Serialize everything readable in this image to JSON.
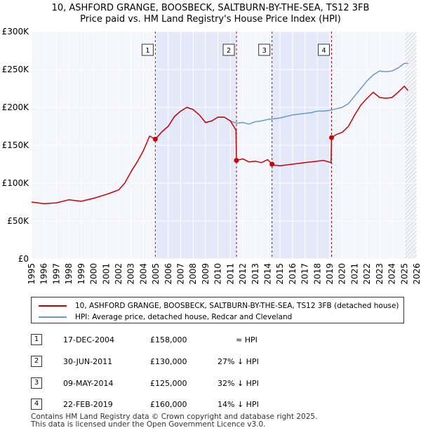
{
  "title_line1": "10, ASHFORD GRANGE, BOOSBECK, SALTBURN-BY-THE-SEA, TS12 3FB",
  "title_line2": "Price paid vs. HM Land Registry's House Price Index (HPI)",
  "chart_data": {
    "type": "line",
    "xlim": [
      1995,
      2026
    ],
    "ylim": [
      0,
      300000
    ],
    "y_ticks": [
      0,
      50000,
      100000,
      150000,
      200000,
      250000,
      300000
    ],
    "y_tick_labels": [
      "£0",
      "£50K",
      "£100K",
      "£150K",
      "£200K",
      "£250K",
      "£300K"
    ],
    "x_ticks": [
      1995,
      1996,
      1997,
      1998,
      1999,
      2000,
      2001,
      2002,
      2003,
      2004,
      2005,
      2006,
      2007,
      2008,
      2009,
      2010,
      2011,
      2012,
      2013,
      2014,
      2015,
      2016,
      2017,
      2018,
      2019,
      2020,
      2021,
      2022,
      2023,
      2024,
      2025,
      2026
    ],
    "grid": true,
    "series": [
      {
        "name": "10, ASHFORD GRANGE, BOOSBECK, SALTBURN-BY-THE-SEA, TS12 3FB (detached house)",
        "color": "#cc0000",
        "x": [
          1995.0,
          1996.0,
          1997.0,
          1998.0,
          1999.0,
          2000.0,
          2001.0,
          2001.5,
          2002.0,
          2002.5,
          2003.0,
          2003.5,
          2004.0,
          2004.5,
          2004.96,
          2005.5,
          2006.0,
          2006.5,
          2007.0,
          2007.5,
          2008.0,
          2008.5,
          2009.0,
          2009.5,
          2010.0,
          2010.5,
          2011.0,
          2011.45,
          2011.49,
          2012.0,
          2012.5,
          2013.0,
          2013.5,
          2014.0,
          2014.35,
          2014.4,
          2015.0,
          2016.0,
          2017.0,
          2018.0,
          2018.5,
          2019.1,
          2019.14,
          2019.5,
          2020.0,
          2020.5,
          2021.0,
          2021.5,
          2022.0,
          2022.5,
          2023.0,
          2023.5,
          2024.0,
          2024.5,
          2025.0,
          2025.3
        ],
        "y": [
          75000,
          73000,
          74000,
          78000,
          76000,
          80000,
          85000,
          88000,
          91000,
          100000,
          115000,
          128000,
          143000,
          162000,
          158000,
          168000,
          175000,
          188000,
          195000,
          200000,
          197000,
          190000,
          180000,
          182000,
          187000,
          187000,
          182000,
          170000,
          130000,
          132000,
          128000,
          129000,
          127000,
          131000,
          125000,
          124000,
          123000,
          125000,
          127000,
          129000,
          130000,
          127000,
          160000,
          164000,
          167000,
          175000,
          190000,
          203000,
          212000,
          220000,
          213000,
          212000,
          213000,
          220000,
          228000,
          222000
        ]
      },
      {
        "name": "HPI: Average price, detached house, Redcar and Cleveland",
        "color": "#6699cc",
        "x": [
          2004.96,
          2005.5,
          2006.0,
          2006.5,
          2007.0,
          2007.5,
          2008.0,
          2008.5,
          2009.0,
          2009.5,
          2010.0,
          2010.5,
          2011.0,
          2011.5,
          2012.0,
          2012.5,
          2013.0,
          2013.5,
          2014.0,
          2014.5,
          2015.0,
          2015.5,
          2016.0,
          2016.5,
          2017.0,
          2017.5,
          2018.0,
          2018.5,
          2019.0,
          2019.5,
          2020.0,
          2020.5,
          2021.0,
          2021.5,
          2022.0,
          2022.5,
          2023.0,
          2023.5,
          2024.0,
          2024.5,
          2025.0,
          2025.3
        ],
        "y": [
          158000,
          168000,
          175000,
          188000,
          195000,
          200000,
          197000,
          190000,
          180000,
          182000,
          187000,
          187000,
          182000,
          179000,
          180000,
          178000,
          181000,
          182000,
          184000,
          185000,
          186000,
          188000,
          190000,
          191000,
          192000,
          193000,
          195000,
          195000,
          196000,
          198000,
          200000,
          205000,
          215000,
          225000,
          235000,
          243000,
          248000,
          247000,
          248000,
          252000,
          258000,
          258000
        ]
      }
    ],
    "sales": [
      {
        "label": "1",
        "x": 2004.96,
        "price": 158000
      },
      {
        "label": "2",
        "x": 2011.49,
        "price": 130000
      },
      {
        "label": "3",
        "x": 2014.35,
        "price": 125000
      },
      {
        "label": "4",
        "x": 2019.14,
        "price": 160000
      }
    ],
    "shaded_ranges": [
      [
        2004.96,
        2011.49
      ],
      [
        2014.35,
        2019.14
      ]
    ],
    "forecast_start": 2025.0
  },
  "legend": {
    "property": "10, ASHFORD GRANGE, BOOSBECK, SALTBURN-BY-THE-SEA, TS12 3FB (detached house)",
    "hpi": "HPI: Average price, detached house, Redcar and Cleveland"
  },
  "transactions": [
    {
      "num": "1",
      "date": "17-DEC-2004",
      "price": "£158,000",
      "hpi": "≈ HPI"
    },
    {
      "num": "2",
      "date": "30-JUN-2011",
      "price": "£130,000",
      "hpi": "27% ↓ HPI"
    },
    {
      "num": "3",
      "date": "09-MAY-2014",
      "price": "£125,000",
      "hpi": "32% ↓ HPI"
    },
    {
      "num": "4",
      "date": "22-FEB-2019",
      "price": "£160,000",
      "hpi": "14% ↓ HPI"
    }
  ],
  "footer_line1": "Contains HM Land Registry data © Crown copyright and database right 2025.",
  "footer_line2": "This data is licensed under the Open Government Licence v3.0."
}
